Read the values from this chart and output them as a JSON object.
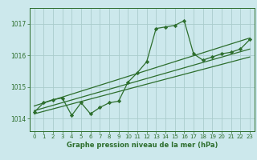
{
  "title": "Graphe pression niveau de la mer (hPa)",
  "bg_color": "#cce8ec",
  "grid_color": "#aacccc",
  "line_color": "#2d6e2d",
  "x_min": -0.5,
  "x_max": 23.5,
  "y_min": 1013.6,
  "y_max": 1017.5,
  "y_ticks": [
    1014,
    1015,
    1016,
    1017
  ],
  "x_ticks": [
    0,
    1,
    2,
    3,
    4,
    5,
    6,
    7,
    8,
    9,
    10,
    11,
    12,
    13,
    14,
    15,
    16,
    17,
    18,
    19,
    20,
    21,
    22,
    23
  ],
  "main_line": {
    "x": [
      0,
      1,
      2,
      3,
      4,
      5,
      6,
      7,
      8,
      9,
      10,
      11,
      12,
      13,
      14,
      15,
      16,
      17,
      18,
      19,
      20,
      21,
      22,
      23
    ],
    "y": [
      1014.2,
      1014.5,
      1014.6,
      1014.65,
      1014.1,
      1014.5,
      1014.15,
      1014.35,
      1014.5,
      1014.55,
      1015.15,
      1015.45,
      1015.8,
      1016.85,
      1016.9,
      1016.95,
      1017.1,
      1016.05,
      1015.85,
      1015.95,
      1016.05,
      1016.1,
      1016.2,
      1016.5
    ]
  },
  "trend_lines": [
    {
      "x": [
        0,
        23
      ],
      "y": [
        1014.15,
        1015.95
      ]
    },
    {
      "x": [
        0,
        23
      ],
      "y": [
        1014.25,
        1016.2
      ]
    },
    {
      "x": [
        0,
        23
      ],
      "y": [
        1014.4,
        1016.55
      ]
    }
  ]
}
